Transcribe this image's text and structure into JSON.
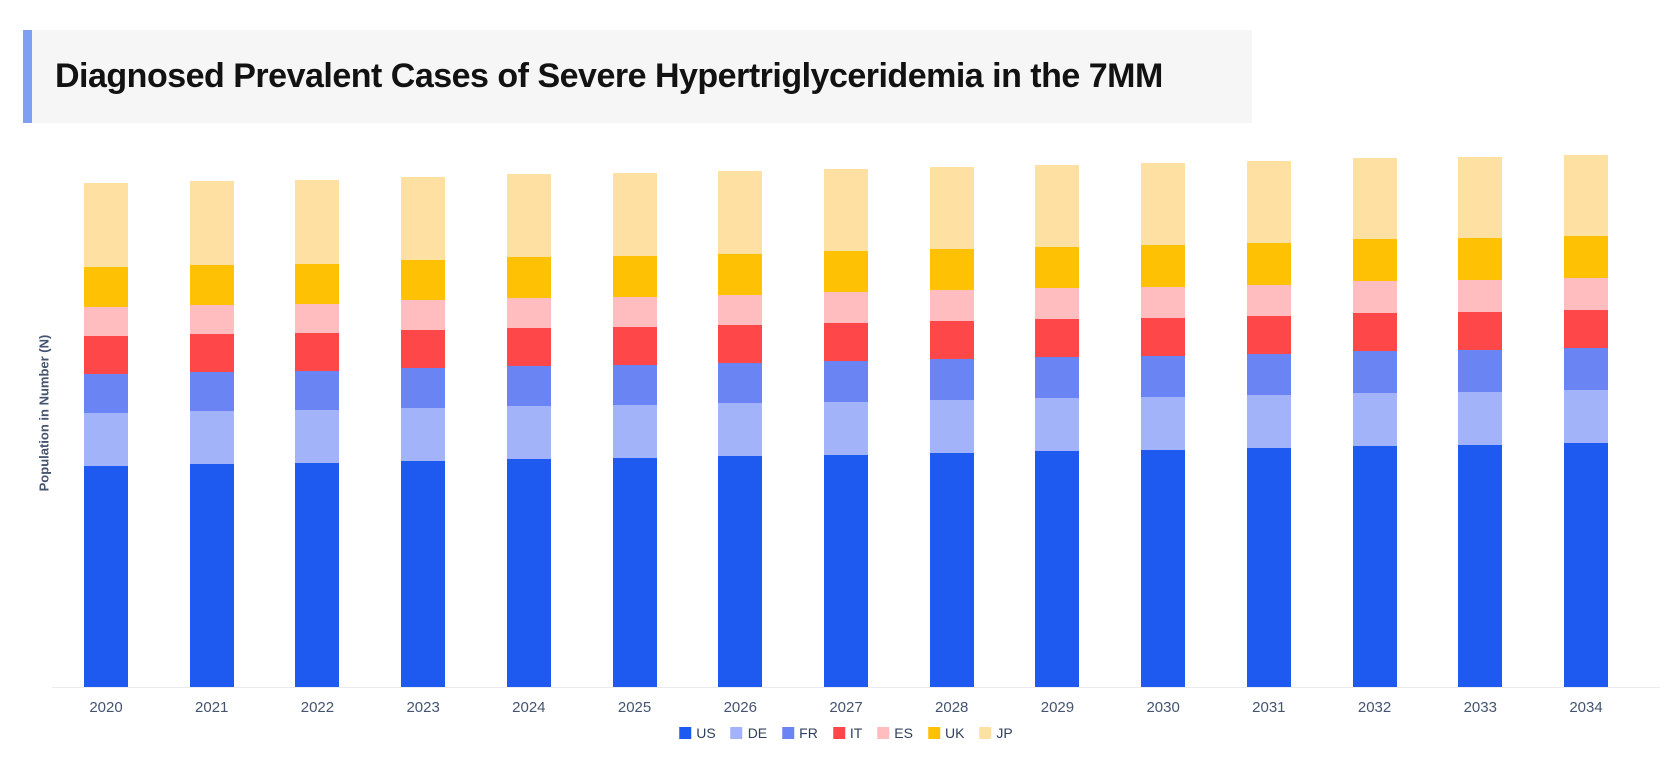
{
  "header": {
    "accent_color": "#7e9ff2",
    "band_color": "#f6f6f7"
  },
  "chart_data": {
    "type": "bar",
    "stacked": true,
    "title": "Diagnosed Prevalent Cases of Severe Hypertriglyceridemia in the 7MM",
    "xlabel": "",
    "ylabel": "Population in Number (N)",
    "categories": [
      "2020",
      "2021",
      "2022",
      "2023",
      "2024",
      "2025",
      "2026",
      "2027",
      "2028",
      "2029",
      "2030",
      "2031",
      "2032",
      "2033",
      "2034"
    ],
    "series": [
      {
        "name": "US",
        "color": "#1f5af0",
        "values": [
          221,
          223,
          224,
          226,
          228,
          229,
          231,
          232,
          234,
          236,
          237,
          239,
          241,
          242,
          244
        ]
      },
      {
        "name": "DE",
        "color": "#a3b3f9",
        "values": [
          53,
          53,
          53,
          53,
          53,
          53,
          53,
          53,
          53,
          53,
          53,
          53,
          53,
          53,
          53
        ]
      },
      {
        "name": "FR",
        "color": "#6b84f4",
        "values": [
          39,
          39,
          39,
          40,
          40,
          40,
          40,
          41,
          41,
          41,
          41,
          41,
          42,
          42,
          42
        ]
      },
      {
        "name": "IT",
        "color": "#fd4748",
        "values": [
          38,
          38,
          38,
          38,
          38,
          38,
          38,
          38,
          38,
          38,
          38,
          38,
          38,
          38,
          38
        ]
      },
      {
        "name": "ES",
        "color": "#ffbdbf",
        "values": [
          29,
          29,
          29,
          30,
          30,
          30,
          30,
          31,
          31,
          31,
          31,
          31,
          32,
          32,
          32
        ]
      },
      {
        "name": "UK",
        "color": "#ffc103",
        "values": [
          40,
          40,
          40,
          40,
          41,
          41,
          41,
          41,
          41,
          41,
          42,
          42,
          42,
          42,
          42
        ]
      },
      {
        "name": "JP",
        "color": "#ffe0a3",
        "values": [
          84,
          84,
          84,
          83,
          83,
          83,
          83,
          82,
          82,
          82,
          82,
          82,
          81,
          81,
          81
        ]
      }
    ],
    "value_units": "relative units (no numeric y-axis ticks or gridlines shown; values estimated from stacked bar heights)",
    "grid": false,
    "y_axis_ticks": "none",
    "legend_position": "bottom",
    "stack_order_bottom_to_top": [
      "US",
      "DE",
      "FR",
      "IT",
      "ES",
      "UK",
      "JP"
    ]
  },
  "axis": {
    "tick_color": "#44546f",
    "line_color": "#e9ebf0"
  },
  "legend": {
    "text_color": "#31405c"
  }
}
